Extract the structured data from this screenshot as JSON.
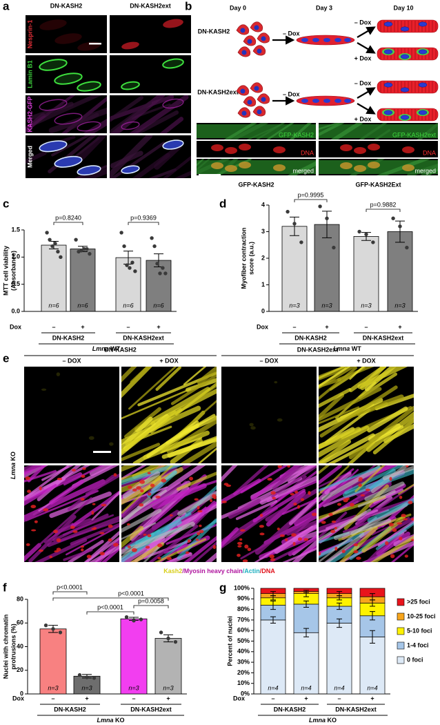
{
  "panel_a": {
    "letter": "a",
    "columns": [
      "DN-KASH2",
      "DN-KASH2ext"
    ],
    "rows": [
      "Nesprin-1",
      "Lamin B1",
      "KASH2-GFP",
      "Merged"
    ]
  },
  "panel_b": {
    "letter": "b",
    "days": [
      "Day 0",
      "Day 3",
      "Day 10"
    ],
    "constructs": [
      {
        "name": "DN-KASH2",
        "arrows": [
          "– Dox",
          "– Dox",
          "+ Dox"
        ]
      },
      {
        "name": "DN-KASH2ext",
        "arrows": [
          "– Dox",
          "– Dox",
          "+ Dox"
        ]
      }
    ],
    "images": [
      {
        "caption": "GFP-KASH2",
        "rows": [
          "GFP-KASH2",
          "DNA",
          "merged"
        ]
      },
      {
        "caption": "GFP-KASH2Ext",
        "rows": [
          "GFP-KASH2ext",
          "DNA",
          "merged"
        ]
      }
    ]
  },
  "panel_e": {
    "letter": "e",
    "groups": [
      {
        "name": "DN-KASH2",
        "conditions": [
          "– DOX",
          "+ DOX"
        ]
      },
      {
        "name": "DN-KASH2ext",
        "conditions": [
          "– DOX",
          "+ DOX"
        ]
      }
    ],
    "row_label": {
      "gene": "Lmna",
      "genotype": "KO"
    },
    "legend": [
      {
        "text": "Kash2",
        "color": "#d8cf1a"
      },
      {
        "text": "/Myosin heavy chain",
        "color": "#b0179f"
      },
      {
        "text": "/Actin",
        "color": "#1fb0c0"
      },
      {
        "text": "/DNA",
        "color": "#e0121b"
      }
    ]
  },
  "chart_data": [
    {
      "type": "bar",
      "letter": "c",
      "ylabel": [
        "MTT cell viability",
        "(Absorbance)"
      ],
      "ylim": [
        0,
        1.5
      ],
      "yticks": [
        {
          "value": 0,
          "label": "0.0"
        },
        {
          "value": 0.5,
          "label": "0.5"
        },
        {
          "value": 1,
          "label": "1.0"
        },
        {
          "value": 1.5,
          "label": "1.5"
        }
      ],
      "x_row_label": "Dox",
      "categories": [
        "–",
        "+",
        "–",
        "+"
      ],
      "groups": [
        "DN-KASH2",
        "DN-KASH2ext"
      ],
      "caption": {
        "gene": "Lmna",
        "genotype": "WT"
      },
      "colors": [
        "#d9d9d9",
        "#7f7f7f",
        "#d9d9d9",
        "#7f7f7f"
      ],
      "values": [
        1.22,
        1.15,
        0.99,
        0.94
      ],
      "errors": [
        0.07,
        0.05,
        0.12,
        0.12
      ],
      "points": [
        [
          1.45,
          1.32,
          1.2,
          1.25,
          1.1,
          1.0
        ],
        [
          1.32,
          1.1,
          1.12,
          1.15,
          1.15,
          1.06
        ],
        [
          1.45,
          1.2,
          0.85,
          0.8,
          0.9,
          0.74
        ],
        [
          1.35,
          1.2,
          0.88,
          0.7,
          0.8,
          0.7
        ]
      ],
      "n_labels": [
        "n=6",
        "n=6",
        "n=6",
        "n=6"
      ],
      "comparisons": [
        "p=0.8240",
        "p=0.9369"
      ]
    },
    {
      "type": "bar",
      "letter": "d",
      "ylabel": [
        "Myofiber contraction",
        "score (a.u.)"
      ],
      "ylim": [
        0,
        4
      ],
      "yticks": [
        0,
        1,
        2,
        3,
        4
      ],
      "x_row_label": "Dox",
      "categories": [
        "–",
        "+",
        "–",
        "+"
      ],
      "groups": [
        "DN-KASH2",
        "DN-KASH2ext"
      ],
      "caption": {
        "gene": "Lmna",
        "genotype": "WT"
      },
      "colors": [
        "#d9d9d9",
        "#7f7f7f",
        "#d9d9d9",
        "#7f7f7f"
      ],
      "values": [
        3.2,
        3.27,
        2.82,
        3.0
      ],
      "errors": [
        0.35,
        0.5,
        0.15,
        0.4
      ],
      "points": [
        [
          3.75,
          3.3,
          2.6
        ],
        [
          3.95,
          3.5,
          2.4
        ],
        [
          3.0,
          2.9,
          2.6
        ],
        [
          3.5,
          3.2,
          2.4
        ]
      ],
      "n_labels": [
        "n=3",
        "n=3",
        "n=3",
        "n=3"
      ],
      "comparisons": [
        "p=0.9995",
        "p=0.9882"
      ]
    },
    {
      "type": "bar",
      "letter": "f",
      "ylabel": [
        "Nuclei with chromatin",
        "protrusions (%)"
      ],
      "ylim": [
        0,
        80
      ],
      "yticks": [
        0,
        20,
        40,
        60,
        80
      ],
      "x_row_label": "Dox",
      "categories": [
        "–",
        "+",
        "–",
        "+"
      ],
      "groups": [
        "DN-KASH2",
        "DN-KASH2ext"
      ],
      "caption": {
        "gene": "Lmna",
        "genotype": "KO"
      },
      "colors": [
        "#f88181",
        "#6e6e6e",
        "#f23ef0",
        "#b3b3b3"
      ],
      "values": [
        55,
        15,
        63.5,
        47
      ],
      "errors": [
        3,
        1.5,
        1.3,
        3
      ],
      "points": [
        [
          58,
          55,
          52
        ],
        [
          16,
          14,
          13.5
        ],
        [
          65,
          62,
          63
        ],
        [
          52,
          47,
          44
        ]
      ],
      "n_labels": [
        "n=3",
        "n=3",
        "n=3",
        "n=3"
      ],
      "comparisons": [
        "p<0.0001",
        "p<0.0001",
        "p=0.0058",
        "p<0.0001"
      ]
    },
    {
      "type": "stacked_bar",
      "letter": "g",
      "ylabel": [
        "Percent of nuclei"
      ],
      "ylim": [
        0,
        100
      ],
      "yticks": [
        {
          "value": 0,
          "label": "0%"
        },
        {
          "value": 10,
          "label": "10%"
        },
        {
          "value": 20,
          "label": "20%"
        },
        {
          "value": 30,
          "label": "30%"
        },
        {
          "value": 40,
          "label": "40%"
        },
        {
          "value": 50,
          "label": "50%"
        },
        {
          "value": 60,
          "label": "60%"
        },
        {
          "value": 70,
          "label": "70%"
        },
        {
          "value": 80,
          "label": "80%"
        },
        {
          "value": 90,
          "label": "90%"
        },
        {
          "value": 100,
          "label": "100%"
        }
      ],
      "x_row_label": "Dox",
      "categories": [
        "–",
        "+",
        "–",
        "+"
      ],
      "groups": [
        "DN-KASH2",
        "DN-KASH2ext"
      ],
      "caption": {
        "gene": "Lmna",
        "genotype": "KO"
      },
      "series": [
        {
          "name": "0 foci",
          "color": "#dde9f6",
          "values": [
            70,
            58,
            67,
            54
          ],
          "errors": [
            3,
            4,
            4,
            6
          ]
        },
        {
          "name": "1-4 foci",
          "color": "#a6c6e8",
          "values": [
            14,
            27,
            16,
            20
          ],
          "errors": [
            4,
            3,
            3,
            4
          ]
        },
        {
          "name": "5-10 foci",
          "color": "#fff200",
          "values": [
            7,
            10,
            8,
            12
          ],
          "errors": [
            2,
            3,
            2,
            3
          ]
        },
        {
          "name": "10-25 foci",
          "color": "#f7a51c",
          "values": [
            4,
            2,
            4,
            6
          ],
          "errors": [
            2,
            1,
            2,
            3
          ]
        },
        {
          "name": ">25 foci",
          "color": "#e8141c",
          "values": [
            5,
            3,
            5,
            8
          ]
        }
      ],
      "n_labels": [
        "n=4",
        "n=4",
        "n=4",
        "n=4"
      ],
      "comparisons": []
    }
  ]
}
